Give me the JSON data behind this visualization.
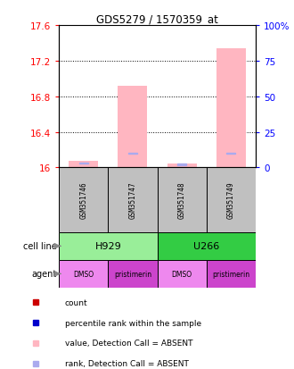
{
  "title": "GDS5279 / 1570359_at",
  "samples": [
    "GSM351746",
    "GSM351747",
    "GSM351748",
    "GSM351749"
  ],
  "ylim_left": [
    16.0,
    17.6
  ],
  "yticks_left": [
    16.0,
    16.4,
    16.8,
    17.2,
    17.6
  ],
  "yticks_right": [
    0,
    25,
    50,
    75,
    100
  ],
  "ylim_right": [
    0,
    100
  ],
  "bar_values": [
    16.07,
    16.92,
    16.04,
    17.34
  ],
  "rank_values": [
    3.0,
    10.0,
    2.0,
    10.0
  ],
  "bar_color_absent": "#FFB6C1",
  "rank_color_absent": "#AAAAEE",
  "cell_line_groups": [
    {
      "label": "H929",
      "span": [
        0,
        2
      ],
      "color": "#99EE99"
    },
    {
      "label": "U266",
      "span": [
        2,
        4
      ],
      "color": "#33CC44"
    }
  ],
  "agent_labels": [
    "DMSO",
    "pristimerin",
    "DMSO",
    "pristimerin"
  ],
  "agent_colors": [
    "#EE88EE",
    "#CC44CC",
    "#EE88EE",
    "#CC44CC"
  ],
  "legend_items": [
    {
      "color": "#CC0000",
      "label": "count"
    },
    {
      "color": "#0000CC",
      "label": "percentile rank within the sample"
    },
    {
      "color": "#FFB6C1",
      "label": "value, Detection Call = ABSENT"
    },
    {
      "color": "#AAAAEE",
      "label": "rank, Detection Call = ABSENT"
    }
  ]
}
